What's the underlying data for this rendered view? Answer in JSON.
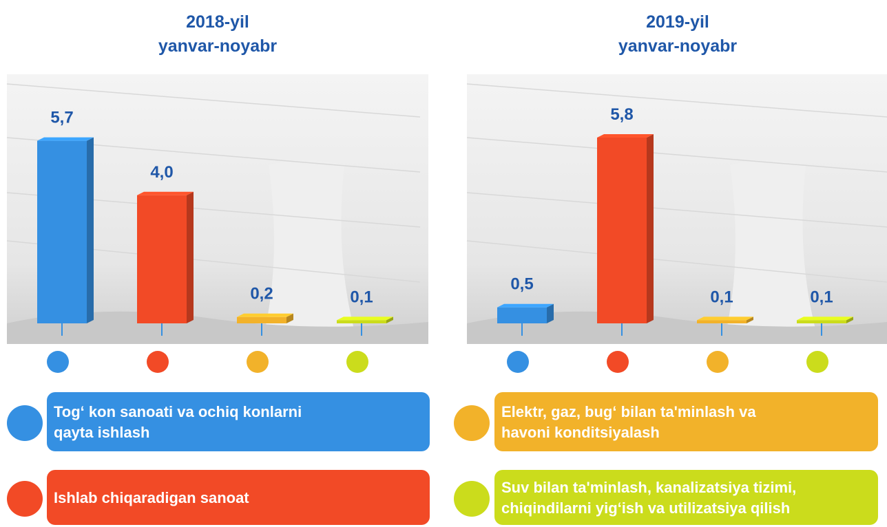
{
  "chart_data": [
    {
      "type": "bar",
      "title": "2018-yil",
      "subtitle": "yanvar-noyabr",
      "values": [
        5.7,
        4.0,
        0.2,
        0.1
      ],
      "value_labels": [
        "5,7",
        "4,0",
        "0,2",
        "0,1"
      ]
    },
    {
      "type": "bar",
      "title": "2019-yil",
      "subtitle": "yanvar-noyabr",
      "values": [
        0.5,
        5.8,
        0.1,
        0.1
      ],
      "value_labels": [
        "0,5",
        "5,8",
        "0,1",
        "0,1"
      ]
    }
  ],
  "legend": [
    {
      "lines": [
        "Tog‘ kon sanoati va ochiq konlarni",
        "qayta ishlash"
      ],
      "color": "#3590e2"
    },
    {
      "lines": [
        "Ishlab chiqaradigan sanoat"
      ],
      "color": "#f24a26"
    },
    {
      "lines": [
        "Elektr, gaz, bug‘ bilan ta'minlash va",
        "havoni konditsiyalash"
      ],
      "color": "#f2b22a"
    },
    {
      "lines": [
        "Suv bilan ta'minlash, kanalizatsiya tizimi,",
        "chiqindilarni yig‘ish va utilizatsiya qilish"
      ],
      "color": "#cbdc1c"
    }
  ]
}
